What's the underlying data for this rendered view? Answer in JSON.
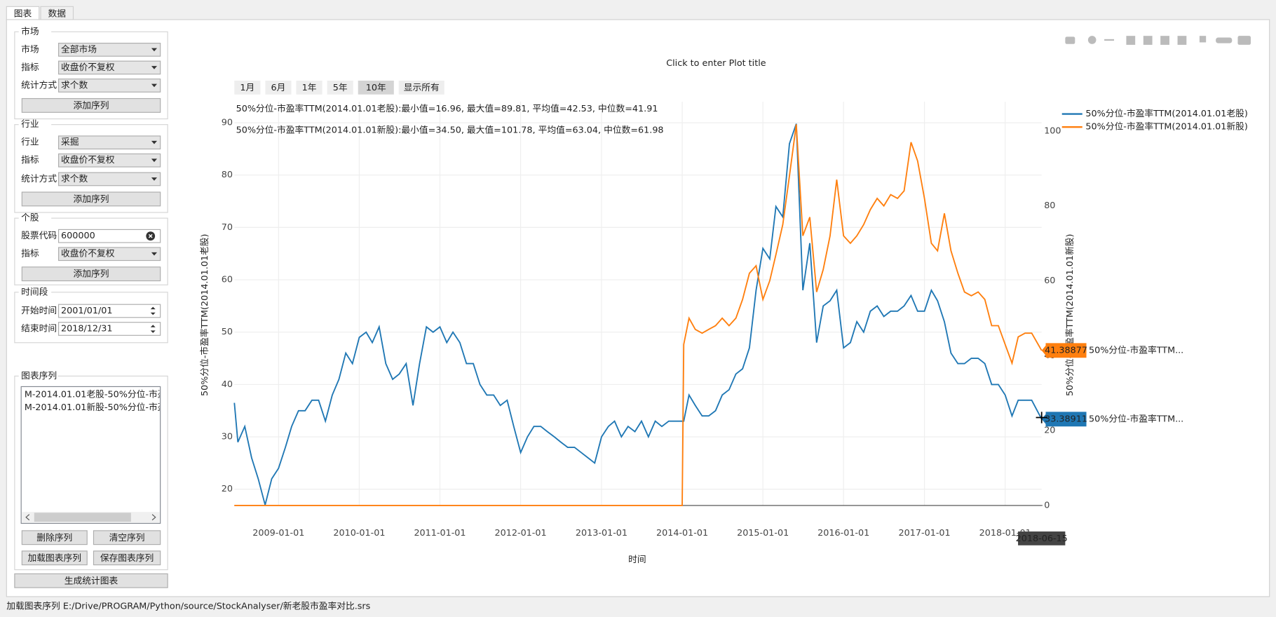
{
  "ui": {
    "tabs": [
      "图表",
      "数据"
    ],
    "market": {
      "title": "市场",
      "fields": [
        {
          "label": "市场",
          "value": "全部市场"
        },
        {
          "label": "指标",
          "value": "收盘价不复权"
        },
        {
          "label": "统计方式",
          "value": "求个数"
        }
      ],
      "button": "添加序列"
    },
    "industry": {
      "title": "行业",
      "fields": [
        {
          "label": "行业",
          "value": "采掘"
        },
        {
          "label": "指标",
          "value": "收盘价不复权"
        },
        {
          "label": "统计方式",
          "value": "求个数"
        }
      ],
      "button": "添加序列"
    },
    "stock": {
      "title": "个股",
      "fields": [
        {
          "label": "股票代码",
          "value": "600000"
        },
        {
          "label": "指标",
          "value": "收盘价不复权"
        }
      ],
      "button": "添加序列"
    },
    "period": {
      "title": "时间段",
      "fields": [
        {
          "label": "开始时间",
          "value": "2001/01/01"
        },
        {
          "label": "结束时间",
          "value": "2018/12/31"
        }
      ]
    },
    "series_list": {
      "title": "图表序列",
      "items": [
        "M-2014.01.01老股-50%分位-市盈",
        "M-2014.01.01新股-50%分位-市盈"
      ],
      "buttons": [
        "删除序列",
        "清空序列",
        "加载图表序列",
        "保存图表序列"
      ]
    },
    "generate_button": "生成统计图表",
    "status": "加载图表序列 E:/Drive/PROGRAM/Python/source/StockAnalyser/新老股市盈率对比.srs"
  },
  "chart_data": {
    "type": "line",
    "title": "Click to enter Plot title",
    "range_buttons": [
      "1月",
      "6月",
      "1年",
      "5年",
      "10年",
      "显示所有"
    ],
    "range_selected": 4,
    "annotations": [
      "50%分位-市盈率TTM(2014.01.01老股):最小值=16.96, 最大值=89.81, 平均值=42.53, 中位数=41.91",
      "50%分位-市盈率TTM(2014.01.01新股):最小值=34.50, 最大值=101.78, 平均值=63.04, 中位数=61.98"
    ],
    "x_label": "时间",
    "y_label": "50%分位-市盈率TTM(2014.01.01老股)",
    "y2_label": "50%分位-市盈率TTM(2014.01.01新股)",
    "xlim": [
      "2008-06-15",
      "2018-06-15"
    ],
    "xticks": [
      "2009-01-01",
      "2010-01-01",
      "2011-01-01",
      "2012-01-01",
      "2013-01-01",
      "2014-01-01",
      "2015-01-01",
      "2016-01-01",
      "2017-01-01",
      "2018-01-01"
    ],
    "ylim": [
      16.9,
      94
    ],
    "yticks": [
      20,
      30,
      40,
      50,
      60,
      70,
      80,
      90
    ],
    "y2lim": [
      0,
      107.8
    ],
    "y2ticks": [
      0,
      20,
      40,
      60,
      80,
      100
    ],
    "grid": true,
    "legend": "top-right",
    "x": [
      "2008-06-15",
      "2008-07-01",
      "2008-08-01",
      "2008-09-01",
      "2008-10-01",
      "2008-11-01",
      "2008-12-01",
      "2009-01-01",
      "2009-02-01",
      "2009-03-01",
      "2009-04-01",
      "2009-05-01",
      "2009-06-01",
      "2009-07-01",
      "2009-08-01",
      "2009-09-01",
      "2009-10-01",
      "2009-11-01",
      "2009-12-01",
      "2010-01-01",
      "2010-02-01",
      "2010-03-01",
      "2010-04-01",
      "2010-05-01",
      "2010-06-01",
      "2010-07-01",
      "2010-08-01",
      "2010-09-01",
      "2010-10-01",
      "2010-11-01",
      "2010-12-01",
      "2011-01-01",
      "2011-02-01",
      "2011-03-01",
      "2011-04-01",
      "2011-05-01",
      "2011-06-01",
      "2011-07-01",
      "2011-08-01",
      "2011-09-01",
      "2011-10-01",
      "2011-11-01",
      "2011-12-01",
      "2012-01-01",
      "2012-02-01",
      "2012-03-01",
      "2012-04-01",
      "2012-05-01",
      "2012-06-01",
      "2012-07-01",
      "2012-08-01",
      "2012-09-01",
      "2012-10-01",
      "2012-11-01",
      "2012-12-01",
      "2013-01-01",
      "2013-02-01",
      "2013-03-01",
      "2013-04-01",
      "2013-05-01",
      "2013-06-01",
      "2013-07-01",
      "2013-08-01",
      "2013-09-01",
      "2013-10-01",
      "2013-11-01",
      "2013-12-01",
      "2014-01-01",
      "2014-01-08",
      "2014-02-01",
      "2014-03-01",
      "2014-04-01",
      "2014-05-01",
      "2014-06-01",
      "2014-07-01",
      "2014-08-01",
      "2014-09-01",
      "2014-10-01",
      "2014-11-01",
      "2014-12-01",
      "2015-01-01",
      "2015-02-01",
      "2015-03-01",
      "2015-04-01",
      "2015-05-01",
      "2015-06-01",
      "2015-07-01",
      "2015-08-01",
      "2015-09-01",
      "2015-10-01",
      "2015-11-01",
      "2015-12-01",
      "2016-01-01",
      "2016-02-01",
      "2016-03-01",
      "2016-04-01",
      "2016-05-01",
      "2016-06-01",
      "2016-07-01",
      "2016-08-01",
      "2016-09-01",
      "2016-10-01",
      "2016-11-01",
      "2016-12-01",
      "2017-01-01",
      "2017-02-01",
      "2017-03-01",
      "2017-04-01",
      "2017-05-01",
      "2017-06-01",
      "2017-07-01",
      "2017-08-01",
      "2017-09-01",
      "2017-10-01",
      "2017-11-01",
      "2017-12-01",
      "2018-01-01",
      "2018-02-01",
      "2018-03-01",
      "2018-04-01",
      "2018-05-01",
      "2018-06-15"
    ],
    "series": [
      {
        "name": "50%分位-市盈率TTM(2014.01.01老股)",
        "color": "#1f77b4",
        "axis": "y",
        "values": [
          36.5,
          29,
          32,
          26,
          22,
          17,
          22,
          24,
          28,
          32,
          35,
          35,
          37,
          37,
          33,
          38,
          41,
          46,
          44,
          49,
          50,
          48,
          51,
          44,
          41,
          42,
          44,
          36,
          44,
          51,
          50,
          51,
          48,
          50,
          48,
          44,
          44,
          40,
          38,
          38,
          36,
          37,
          32,
          27,
          30,
          32,
          32,
          31,
          30,
          29,
          28,
          28,
          27,
          26,
          25,
          30,
          32,
          33,
          30,
          32,
          31,
          33,
          30,
          33,
          32,
          33,
          33,
          33,
          33,
          38,
          36,
          34,
          34,
          35,
          38,
          39,
          42,
          43,
          47,
          58,
          66,
          64,
          74,
          72,
          86,
          89.81,
          58,
          67,
          48,
          55,
          56,
          58,
          47,
          48,
          52,
          50,
          54,
          55,
          53,
          54,
          54,
          55,
          57,
          54,
          54,
          58,
          56,
          52,
          46,
          44,
          44,
          45,
          45,
          44,
          40,
          40,
          38,
          34,
          37,
          37,
          37,
          33.38911
        ]
      },
      {
        "name": "50%分位-市盈率TTM(2014.01.01新股)",
        "color": "#ff7f0e",
        "axis": "y2",
        "values": [
          0,
          0,
          0,
          0,
          0,
          0,
          0,
          0,
          0,
          0,
          0,
          0,
          0,
          0,
          0,
          0,
          0,
          0,
          0,
          0,
          0,
          0,
          0,
          0,
          0,
          0,
          0,
          0,
          0,
          0,
          0,
          0,
          0,
          0,
          0,
          0,
          0,
          0,
          0,
          0,
          0,
          0,
          0,
          0,
          0,
          0,
          0,
          0,
          0,
          0,
          0,
          0,
          0,
          0,
          0,
          0,
          0,
          0,
          0,
          0,
          0,
          0,
          0,
          0,
          0,
          0,
          0,
          0,
          43,
          50,
          47,
          46,
          47,
          48,
          50,
          48,
          50,
          55,
          62,
          64,
          55,
          60,
          67,
          75,
          88,
          101.78,
          72,
          77,
          57,
          63,
          72,
          87,
          72,
          70,
          72,
          75,
          79,
          82,
          80,
          83,
          82,
          84,
          97,
          92,
          82,
          70,
          68,
          78,
          68,
          62,
          57,
          56,
          57,
          55,
          48,
          48,
          43,
          38,
          45,
          46,
          46,
          41.38877
        ]
      }
    ],
    "hover_names": [
      "50%分位-市盈率TTM...",
      "50%分位-市盈率TTM..."
    ]
  }
}
